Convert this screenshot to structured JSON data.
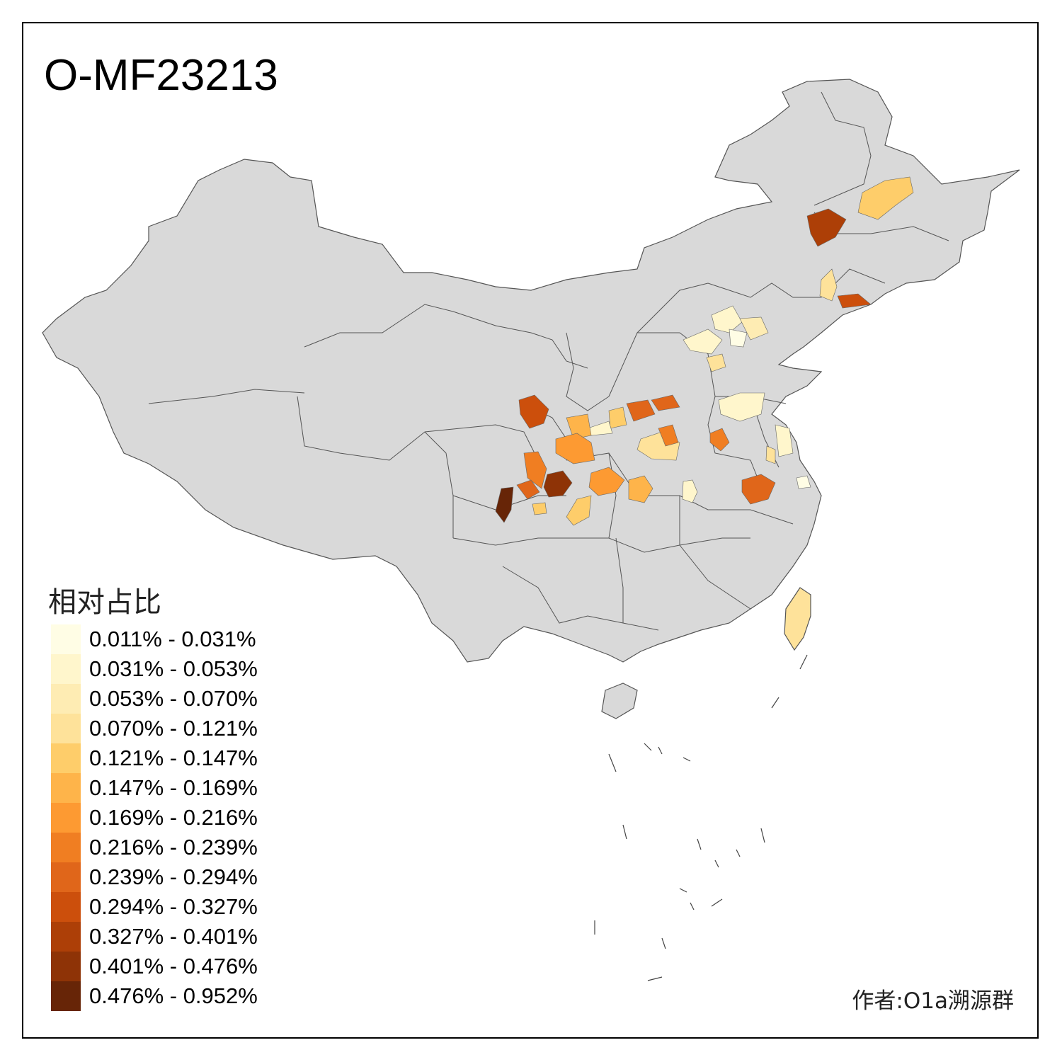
{
  "title": "O-MF23213",
  "legend": {
    "title": "相对占比",
    "items": [
      {
        "label": "0.011% - 0.031%",
        "color": "#fffde5"
      },
      {
        "label": "0.031% - 0.053%",
        "color": "#fff6cc"
      },
      {
        "label": "0.053% - 0.070%",
        "color": "#feecb3"
      },
      {
        "label": "0.070% - 0.121%",
        "color": "#fee29a"
      },
      {
        "label": "0.121% - 0.147%",
        "color": "#fecd6a"
      },
      {
        "label": "0.147% - 0.169%",
        "color": "#feb44a"
      },
      {
        "label": "0.169% - 0.216%",
        "color": "#fd9a32"
      },
      {
        "label": "0.216% - 0.239%",
        "color": "#f07e22"
      },
      {
        "label": "0.239% - 0.294%",
        "color": "#e0661a"
      },
      {
        "label": "0.294% - 0.327%",
        "color": "#cc4f0c"
      },
      {
        "label": "0.327% - 0.401%",
        "color": "#ad3f07"
      },
      {
        "label": "0.401% - 0.476%",
        "color": "#8e3306"
      },
      {
        "label": "0.476% - 0.952%",
        "color": "#672507"
      }
    ]
  },
  "map": {
    "base_color": "#d9d9d9",
    "border_color": "#555555"
  },
  "credit": "作者:O1a溯源群"
}
